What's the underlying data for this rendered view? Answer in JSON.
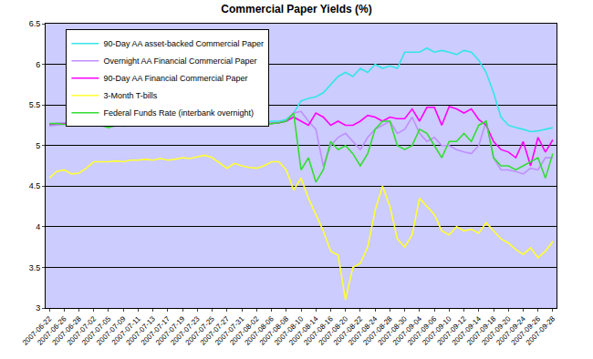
{
  "chart_data": {
    "type": "line",
    "title": "Commercial Paper Yields (%)",
    "categories": [
      "2007-06-22",
      null,
      "2007-06-26",
      null,
      "2007-06-28",
      null,
      "2007-07-02",
      null,
      "2007-07-05",
      null,
      "2007-07-09",
      null,
      "2007-07-11",
      null,
      "2007-07-13",
      null,
      "2007-07-17",
      null,
      "2007-07-19",
      null,
      "2007-07-23",
      null,
      "2007-07-25",
      null,
      "2007-07-27",
      null,
      "2007-07-31",
      null,
      "2007-08-02",
      null,
      "2007-08-06",
      null,
      "2007-08-08",
      null,
      "2007-08-10",
      null,
      "2007-08-14",
      null,
      "2007-08-16",
      null,
      "2007-08-20",
      null,
      "2007-08-22",
      null,
      "2007-08-24",
      null,
      "2007-08-28",
      null,
      "2007-08-30",
      null,
      "2007-09-04",
      null,
      "2007-09-06",
      null,
      "2007-09-10",
      null,
      "2007-09-12",
      null,
      "2007-09-14",
      null,
      "2007-09-18",
      null,
      "2007-09-20",
      null,
      "2007-09-24",
      null,
      "2007-09-26",
      null,
      "2007-09-28"
    ],
    "series": [
      {
        "name": "90-Day AA asset-backed Commercial Paper",
        "color": "#33e6e6",
        "values": [
          5.25,
          5.27,
          5.27,
          5.28,
          5.28,
          5.3,
          5.28,
          5.26,
          5.25,
          5.26,
          5.25,
          5.25,
          5.26,
          5.25,
          5.26,
          5.27,
          5.26,
          5.25,
          5.26,
          5.25,
          5.25,
          5.26,
          5.27,
          5.26,
          5.27,
          5.28,
          5.27,
          5.28,
          5.27,
          5.28,
          5.3,
          5.3,
          5.32,
          5.4,
          5.55,
          5.58,
          5.6,
          5.65,
          5.75,
          5.85,
          5.9,
          5.85,
          5.95,
          5.9,
          6.0,
          5.95,
          5.98,
          5.95,
          6.15,
          6.15,
          6.15,
          6.2,
          6.15,
          6.17,
          6.15,
          6.12,
          6.17,
          6.15,
          6.05,
          5.9,
          5.65,
          5.35,
          5.25,
          5.22,
          5.2,
          5.17,
          5.18,
          5.2,
          5.22
        ]
      },
      {
        "name": "Overnight AA Financial Commercial Paper",
        "color": "#bf8fff",
        "values": [
          5.24,
          5.25,
          5.26,
          5.27,
          5.26,
          5.27,
          5.26,
          5.24,
          5.23,
          5.24,
          5.25,
          5.24,
          5.25,
          5.24,
          5.25,
          5.26,
          5.25,
          5.24,
          5.25,
          5.24,
          5.25,
          5.25,
          5.26,
          5.25,
          5.26,
          5.27,
          5.26,
          5.27,
          5.26,
          5.27,
          5.28,
          5.28,
          5.3,
          5.4,
          5.42,
          5.3,
          5.2,
          4.75,
          5.0,
          5.1,
          5.15,
          5.05,
          4.95,
          5.1,
          5.2,
          5.25,
          5.3,
          5.15,
          5.2,
          5.35,
          5.15,
          5.05,
          5.1,
          5.0,
          5.0,
          4.95,
          4.92,
          4.9,
          5.0,
          5.3,
          4.85,
          4.7,
          4.7,
          4.68,
          4.65,
          4.72,
          4.7,
          4.85,
          4.85
        ]
      },
      {
        "name": "90-Day AA Financial Commercial Paper",
        "color": "#ff00ff",
        "values": [
          5.26,
          5.27,
          5.27,
          5.28,
          5.27,
          5.28,
          5.27,
          5.25,
          5.24,
          5.25,
          5.26,
          5.25,
          5.26,
          5.25,
          5.26,
          5.27,
          5.26,
          5.25,
          5.26,
          5.25,
          5.26,
          5.27,
          5.26,
          5.27,
          5.26,
          5.27,
          5.26,
          5.27,
          5.25,
          5.26,
          5.27,
          5.28,
          5.3,
          5.35,
          5.3,
          5.25,
          5.4,
          5.35,
          5.25,
          5.3,
          5.25,
          5.25,
          5.3,
          5.37,
          5.35,
          5.3,
          5.35,
          5.33,
          5.33,
          5.45,
          5.3,
          5.47,
          5.47,
          5.25,
          5.48,
          5.45,
          5.4,
          5.45,
          5.32,
          5.25,
          5.05,
          4.95,
          4.92,
          4.85,
          5.05,
          4.75,
          5.1,
          4.92,
          5.07
        ]
      },
      {
        "name": "3-Month T-bills",
        "color": "#ffff33",
        "values": [
          4.6,
          4.68,
          4.7,
          4.65,
          4.66,
          4.72,
          4.8,
          4.8,
          4.8,
          4.81,
          4.8,
          4.82,
          4.82,
          4.83,
          4.82,
          4.84,
          4.82,
          4.83,
          4.85,
          4.84,
          4.86,
          4.88,
          4.85,
          4.78,
          4.72,
          4.78,
          4.75,
          4.73,
          4.72,
          4.75,
          4.8,
          4.8,
          4.7,
          4.45,
          4.6,
          4.35,
          4.15,
          3.95,
          3.7,
          3.65,
          3.1,
          3.5,
          3.55,
          3.75,
          4.2,
          4.5,
          4.25,
          3.85,
          3.75,
          3.9,
          4.35,
          4.25,
          4.15,
          3.95,
          3.9,
          4.0,
          3.95,
          3.97,
          3.92,
          4.05,
          3.95,
          3.85,
          3.8,
          3.72,
          3.66,
          3.74,
          3.62,
          3.7,
          3.82
        ]
      },
      {
        "name": "Federal Funds Rate (interbank overnight)",
        "color": "#33dd33",
        "values": [
          5.27,
          5.27,
          5.26,
          5.28,
          5.3,
          5.28,
          5.3,
          5.25,
          5.22,
          5.25,
          5.24,
          5.26,
          5.25,
          5.24,
          5.25,
          5.3,
          5.27,
          5.25,
          5.26,
          5.24,
          5.26,
          5.27,
          5.3,
          5.26,
          5.28,
          5.25,
          5.27,
          5.26,
          5.28,
          5.25,
          5.27,
          5.28,
          5.3,
          5.4,
          4.7,
          4.85,
          4.55,
          4.7,
          5.05,
          4.95,
          5.0,
          4.9,
          4.75,
          4.9,
          5.2,
          5.3,
          5.3,
          5.0,
          4.95,
          5.0,
          5.2,
          5.15,
          5.0,
          4.85,
          5.05,
          5.05,
          5.15,
          5.05,
          5.25,
          5.3,
          4.85,
          4.75,
          4.75,
          4.7,
          4.75,
          4.8,
          4.85,
          4.6,
          4.9
        ]
      }
    ],
    "ylim": [
      3,
      6.5
    ],
    "yticks": [
      3,
      3.5,
      4,
      4.5,
      5,
      5.5,
      6,
      6.5
    ],
    "grid": true,
    "legend": "top-left"
  }
}
